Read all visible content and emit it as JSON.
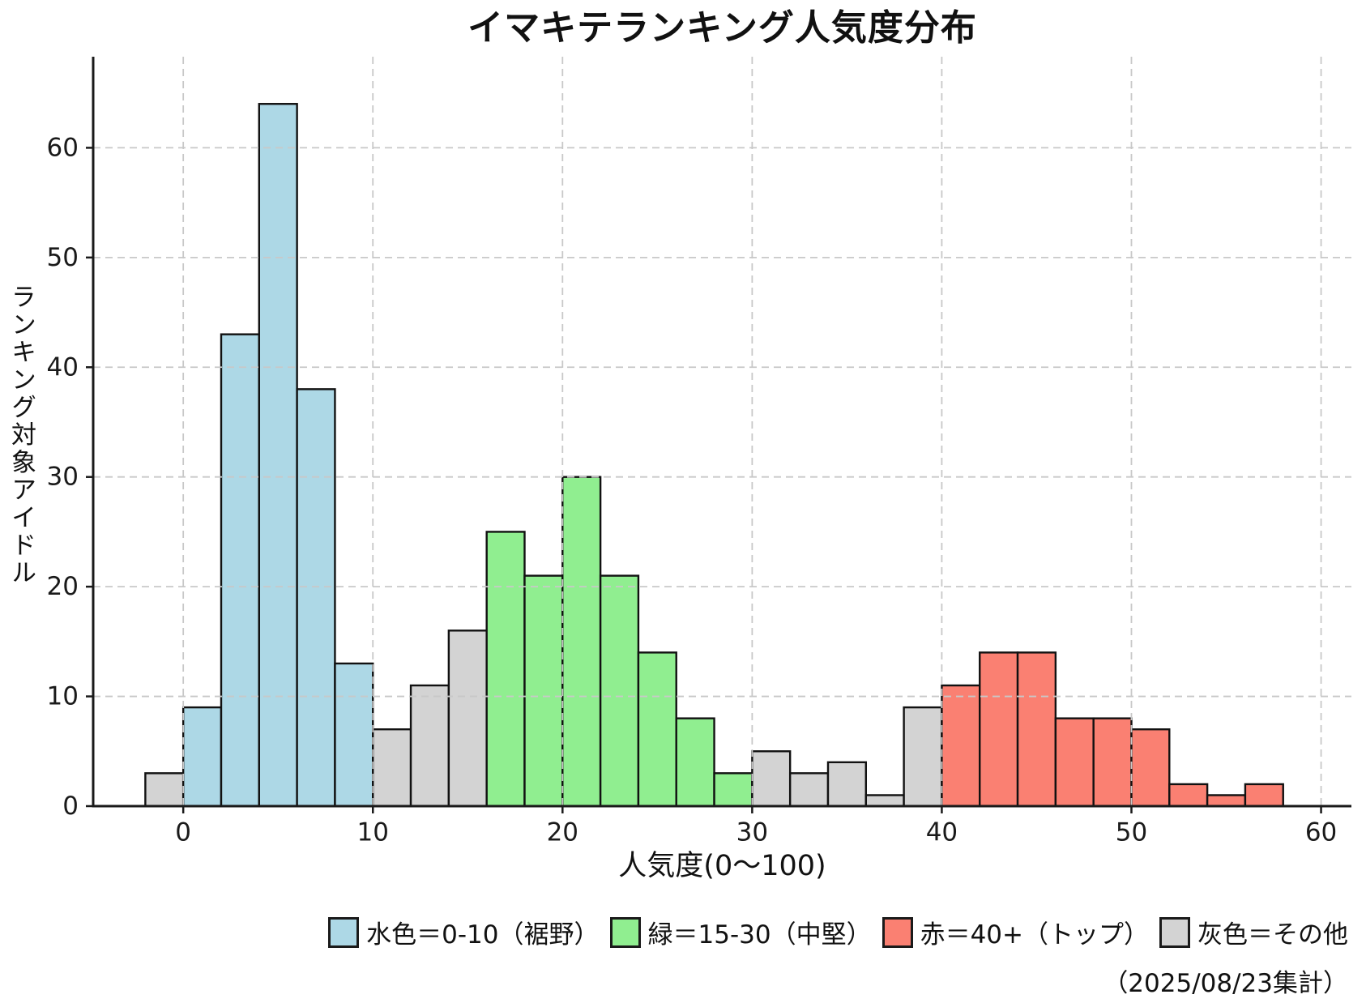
{
  "title": "イマキテランキング人気度分布",
  "footnote": "（2025/08/23集計）",
  "axes": {
    "x_label": "人気度(0〜100)",
    "y_label": "ランキング対象アイドル"
  },
  "legend": {
    "items": [
      {
        "label": "水色＝0-10（裾野）",
        "color": "#ADD8E6"
      },
      {
        "label": "緑＝15-30（中堅）",
        "color": "#90EE90"
      },
      {
        "label": "赤＝40+（トップ）",
        "color": "#FA8072"
      },
      {
        "label": "灰色＝その他",
        "color": "#D3D3D3"
      }
    ]
  },
  "chart_data": {
    "type": "bar",
    "subtype": "histogram",
    "title": "イマキテランキング人気度分布",
    "xlabel": "人気度(0〜100)",
    "ylabel": "ランキング対象アイドル",
    "xlim": [
      -4.75,
      61.6
    ],
    "ylim": [
      0,
      68.3
    ],
    "x_ticks": [
      0,
      10,
      20,
      30,
      40,
      50,
      60
    ],
    "y_ticks": [
      0,
      10,
      20,
      30,
      40,
      50,
      60
    ],
    "grid": true,
    "grid_on_top": true,
    "grid_color": "#c8c8c8",
    "axis_color": "#1a1a1a",
    "bar_edge_color": "#111111",
    "bin_width": 2,
    "palette": {
      "lightblue": "#ADD8E6",
      "lightgreen": "#90EE90",
      "salmon": "#FA8072",
      "lightgray": "#D3D3D3"
    },
    "groups": [
      {
        "name": "水色＝0-10（裾野）",
        "color_key": "lightblue"
      },
      {
        "name": "緑＝15-30（中堅）",
        "color_key": "lightgreen"
      },
      {
        "name": "赤＝40+（トップ）",
        "color_key": "salmon"
      },
      {
        "name": "灰色＝その他",
        "color_key": "lightgray"
      }
    ],
    "bins": [
      {
        "x0": -2,
        "x1": 0,
        "count": 3,
        "group": "lightgray"
      },
      {
        "x0": 0,
        "x1": 2,
        "count": 9,
        "group": "lightblue"
      },
      {
        "x0": 2,
        "x1": 4,
        "count": 43,
        "group": "lightblue"
      },
      {
        "x0": 4,
        "x1": 6,
        "count": 64,
        "group": "lightblue"
      },
      {
        "x0": 6,
        "x1": 8,
        "count": 38,
        "group": "lightblue"
      },
      {
        "x0": 8,
        "x1": 10,
        "count": 13,
        "group": "lightblue"
      },
      {
        "x0": 10,
        "x1": 12,
        "count": 7,
        "group": "lightgray"
      },
      {
        "x0": 12,
        "x1": 14,
        "count": 11,
        "group": "lightgray"
      },
      {
        "x0": 14,
        "x1": 16,
        "count": 16,
        "group": "lightgray"
      },
      {
        "x0": 16,
        "x1": 18,
        "count": 25,
        "group": "lightgreen"
      },
      {
        "x0": 18,
        "x1": 20,
        "count": 21,
        "group": "lightgreen"
      },
      {
        "x0": 20,
        "x1": 22,
        "count": 30,
        "group": "lightgreen"
      },
      {
        "x0": 22,
        "x1": 24,
        "count": 21,
        "group": "lightgreen"
      },
      {
        "x0": 24,
        "x1": 26,
        "count": 14,
        "group": "lightgreen"
      },
      {
        "x0": 26,
        "x1": 28,
        "count": 8,
        "group": "lightgreen"
      },
      {
        "x0": 28,
        "x1": 30,
        "count": 3,
        "group": "lightgreen"
      },
      {
        "x0": 30,
        "x1": 32,
        "count": 5,
        "group": "lightgray"
      },
      {
        "x0": 32,
        "x1": 34,
        "count": 3,
        "group": "lightgray"
      },
      {
        "x0": 34,
        "x1": 36,
        "count": 4,
        "group": "lightgray"
      },
      {
        "x0": 36,
        "x1": 38,
        "count": 1,
        "group": "lightgray"
      },
      {
        "x0": 38,
        "x1": 40,
        "count": 9,
        "group": "lightgray"
      },
      {
        "x0": 40,
        "x1": 42,
        "count": 11,
        "group": "salmon"
      },
      {
        "x0": 42,
        "x1": 44,
        "count": 14,
        "group": "salmon"
      },
      {
        "x0": 44,
        "x1": 46,
        "count": 14,
        "group": "salmon"
      },
      {
        "x0": 46,
        "x1": 48,
        "count": 8,
        "group": "salmon"
      },
      {
        "x0": 48,
        "x1": 50,
        "count": 8,
        "group": "salmon"
      },
      {
        "x0": 50,
        "x1": 52,
        "count": 7,
        "group": "salmon"
      },
      {
        "x0": 52,
        "x1": 54,
        "count": 2,
        "group": "salmon"
      },
      {
        "x0": 54,
        "x1": 56,
        "count": 1,
        "group": "salmon"
      },
      {
        "x0": 56,
        "x1": 58,
        "count": 2,
        "group": "salmon"
      }
    ]
  }
}
